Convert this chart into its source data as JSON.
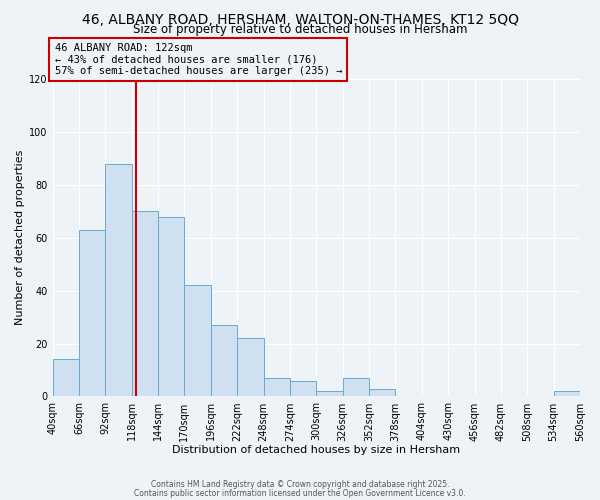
{
  "title1": "46, ALBANY ROAD, HERSHAM, WALTON-ON-THAMES, KT12 5QQ",
  "title2": "Size of property relative to detached houses in Hersham",
  "xlabel": "Distribution of detached houses by size in Hersham",
  "ylabel": "Number of detached properties",
  "bar_edges": [
    40,
    66,
    92,
    118,
    144,
    170,
    196,
    222,
    248,
    274,
    300,
    326,
    352,
    378,
    404,
    430,
    456,
    482,
    508,
    534,
    560
  ],
  "bar_heights": [
    14,
    63,
    88,
    70,
    68,
    42,
    27,
    22,
    7,
    6,
    2,
    7,
    3,
    0,
    0,
    0,
    0,
    0,
    0,
    2
  ],
  "bar_color": "#cfe0f0",
  "bar_edge_color": "#6baad0",
  "vline_x": 122,
  "vline_color": "#cc0000",
  "annotation_line1": "46 ALBANY ROAD: 122sqm",
  "annotation_line2": "← 43% of detached houses are smaller (176)",
  "annotation_line3": "57% of semi-detached houses are larger (235) →",
  "annotation_box_color": "#cc0000",
  "ylim": [
    0,
    120
  ],
  "tick_labels": [
    "40sqm",
    "66sqm",
    "92sqm",
    "118sqm",
    "144sqm",
    "170sqm",
    "196sqm",
    "222sqm",
    "248sqm",
    "274sqm",
    "300sqm",
    "326sqm",
    "352sqm",
    "378sqm",
    "404sqm",
    "430sqm",
    "456sqm",
    "482sqm",
    "508sqm",
    "534sqm",
    "560sqm"
  ],
  "footer1": "Contains HM Land Registry data © Crown copyright and database right 2025.",
  "footer2": "Contains public sector information licensed under the Open Government Licence v3.0.",
  "bg_color": "#eef3f8",
  "plot_bg_color": "#eef3f8",
  "grid_color": "#ffffff",
  "title_fontsize": 10,
  "subtitle_fontsize": 8.5,
  "axis_fontsize": 8,
  "tick_fontsize": 7,
  "ann_fontsize": 7.5
}
